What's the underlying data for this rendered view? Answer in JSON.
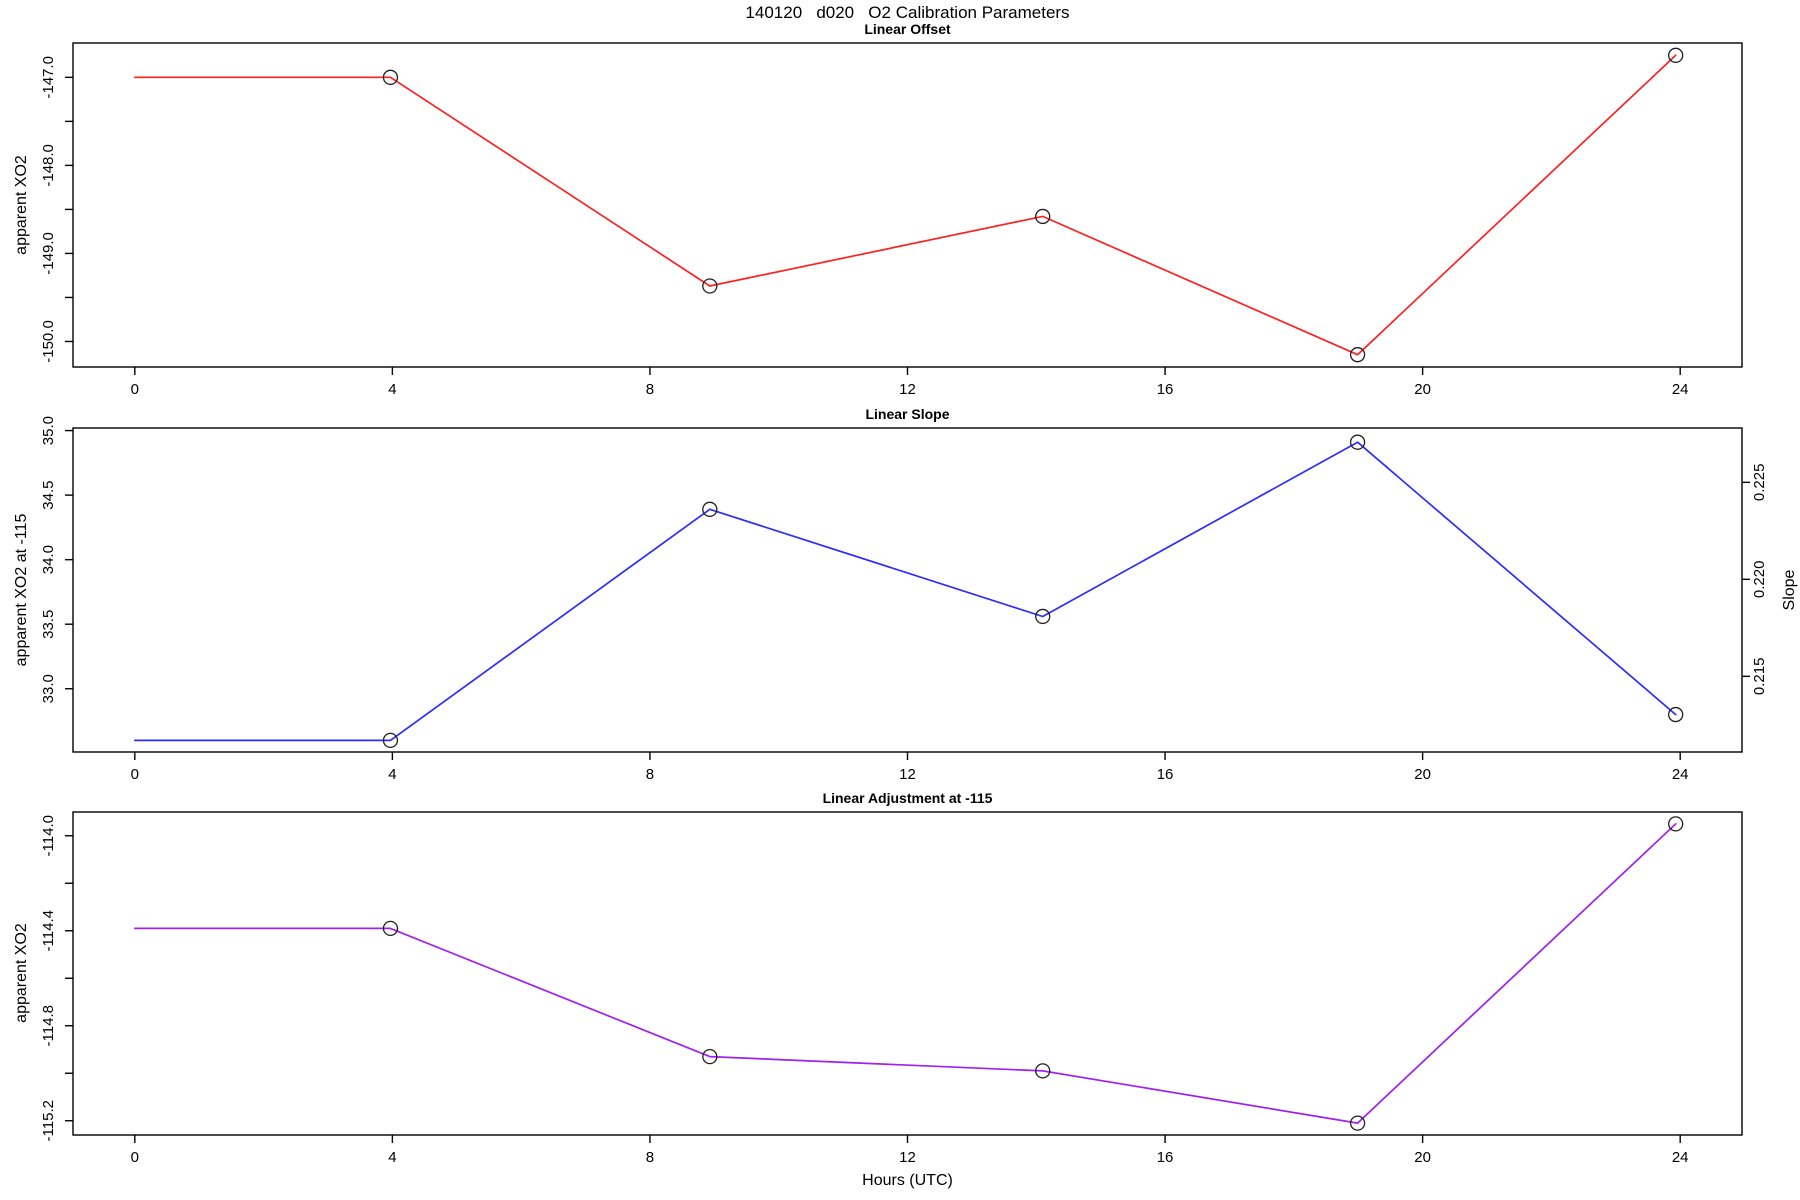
{
  "main_title": "140120   d020   O2 Calibration Parameters",
  "xlabel": "Hours (UTC)",
  "colors": {
    "axis": "#000000",
    "tick_text": "#000000",
    "red": "#ff2020",
    "blue": "#2c2cff",
    "purple": "#a020f0",
    "marker_stroke": "#202020"
  },
  "marker": "open-circle",
  "chart_data": [
    {
      "type": "line",
      "title": "Linear Offset",
      "ylabel": "apparent XO2",
      "series_color_key": "red",
      "x": [
        3.97,
        8.93,
        14.1,
        18.99,
        23.93
      ],
      "values": [
        -147.0,
        -149.37,
        -148.58,
        -150.15,
        -146.75
      ],
      "line_starts_at_hour_zero": true,
      "xlim": [
        -0.96,
        24.96
      ],
      "ylim": [
        -150.29,
        -146.61
      ],
      "xticks": {
        "values": [
          0,
          4,
          8,
          12,
          16,
          20,
          24
        ],
        "labels": [
          "0",
          "4",
          "8",
          "12",
          "16",
          "20",
          "24"
        ]
      },
      "yticks": {
        "values": [
          -147.0,
          -148.0,
          -149.0,
          -150.0
        ],
        "labels": [
          "-147.0",
          "-148.0",
          "-149.0",
          "-150.0"
        ]
      },
      "yticks_minor": [
        -147.5,
        -148.5,
        -149.5
      ],
      "grid": false
    },
    {
      "type": "line",
      "title": "Linear Slope",
      "ylabel": "apparent XO2 at -115",
      "y2label": "Slope",
      "series_color_key": "blue",
      "x": [
        3.97,
        8.93,
        14.1,
        18.99,
        23.93
      ],
      "values": [
        32.6,
        34.39,
        33.56,
        34.91,
        32.8
      ],
      "line_starts_at_hour_zero": true,
      "xlim": [
        -0.96,
        24.96
      ],
      "ylim": [
        32.51,
        35.02
      ],
      "y2lim": [
        0.2111,
        0.2278
      ],
      "xticks": {
        "values": [
          0,
          4,
          8,
          12,
          16,
          20,
          24
        ],
        "labels": [
          "0",
          "4",
          "8",
          "12",
          "16",
          "20",
          "24"
        ]
      },
      "yticks": {
        "values": [
          35.0,
          34.5,
          34.0,
          33.5,
          33.0
        ],
        "labels": [
          "35.0",
          "34.5",
          "34.0",
          "33.5",
          "33.0"
        ]
      },
      "yticks_minor": [],
      "y2ticks": {
        "values": [
          0.225,
          0.22,
          0.215
        ],
        "labels": [
          "0.225",
          "0.220",
          "0.215"
        ]
      },
      "grid": false
    },
    {
      "type": "line",
      "title": "Linear Adjustment at -115",
      "ylabel": "apparent XO2",
      "series_color_key": "purple",
      "x": [
        3.97,
        8.93,
        14.1,
        18.99,
        23.93
      ],
      "values": [
        -114.39,
        -114.93,
        -114.99,
        -115.21,
        -113.95
      ],
      "line_starts_at_hour_zero": true,
      "xlim": [
        -0.96,
        24.96
      ],
      "ylim": [
        -115.26,
        -113.9
      ],
      "xticks": {
        "values": [
          0,
          4,
          8,
          12,
          16,
          20,
          24
        ],
        "labels": [
          "0",
          "4",
          "8",
          "12",
          "16",
          "20",
          "24"
        ]
      },
      "yticks": {
        "values": [
          -114.0,
          -114.4,
          -114.8,
          -115.2
        ],
        "labels": [
          "-114.0",
          "-114.4",
          "-114.8",
          "-115.2"
        ]
      },
      "yticks_minor": [
        -114.2,
        -114.6,
        -115.0
      ],
      "grid": false
    }
  ]
}
